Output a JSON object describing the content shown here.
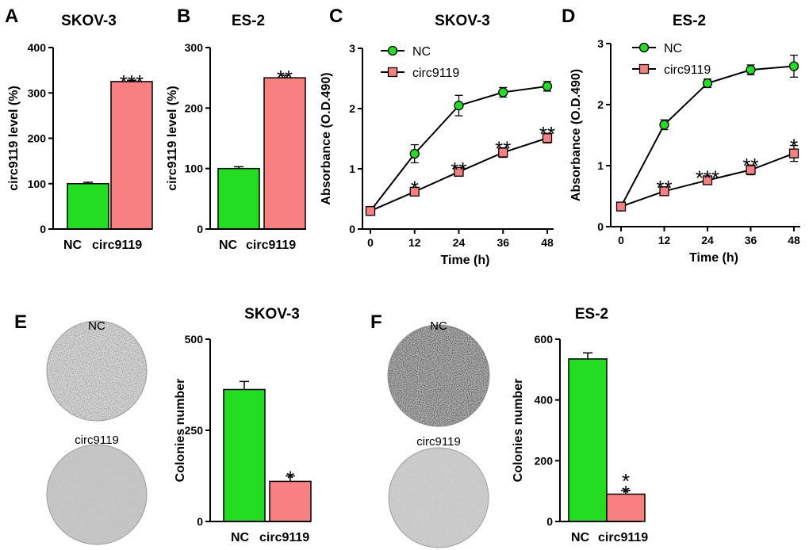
{
  "colors": {
    "nc": "#22dd22",
    "circ": "#f88080",
    "axis": "#000000",
    "dish": "#c2c2c2"
  },
  "panel_labels": [
    "A",
    "B",
    "C",
    "D",
    "E",
    "F"
  ],
  "dish_labels": {
    "E": {
      "top": "NC",
      "bottom": "circ9119"
    },
    "F": {
      "top": "NC",
      "bottom": "circ9119"
    }
  },
  "chart_data": [
    {
      "id": "A",
      "type": "bar",
      "title": "SKOV-3",
      "xlabel": "",
      "ylabel": "circ9119 level (%)",
      "categories": [
        "NC",
        "circ9119"
      ],
      "values": [
        100,
        325
      ],
      "errors": [
        3,
        3
      ],
      "significance": [
        "",
        "***"
      ],
      "ylim": [
        0,
        400
      ],
      "yticks": [
        "0",
        "100",
        "200",
        "300",
        "400"
      ]
    },
    {
      "id": "B",
      "type": "bar",
      "title": "ES-2",
      "xlabel": "",
      "ylabel": "circ9119 level (%)",
      "categories": [
        "NC",
        "circ9119"
      ],
      "values": [
        100,
        250
      ],
      "errors": [
        3,
        4
      ],
      "significance": [
        "",
        "**"
      ],
      "ylim": [
        0,
        300
      ],
      "yticks": [
        "0",
        "100",
        "200",
        "300"
      ]
    },
    {
      "id": "C",
      "type": "line",
      "title": "SKOV-3",
      "xlabel": "Time (h)",
      "ylabel": "Absorbance (O.D.490)",
      "x": [
        0,
        12,
        24,
        36,
        48
      ],
      "xticks": [
        "0",
        "12",
        "24",
        "36",
        "48"
      ],
      "ylim": [
        0,
        3
      ],
      "yticks": [
        "0",
        "1",
        "2",
        "3"
      ],
      "series": [
        {
          "name": "NC",
          "values": [
            0.3,
            1.25,
            2.05,
            2.27,
            2.37
          ],
          "errors": [
            0.03,
            0.15,
            0.17,
            0.08,
            0.08
          ]
        },
        {
          "name": "circ9119",
          "values": [
            0.3,
            0.62,
            0.95,
            1.27,
            1.51
          ],
          "errors": [
            0.03,
            0.07,
            0.05,
            0.08,
            0.08
          ]
        }
      ],
      "significance": [
        "",
        "*",
        "**",
        "**",
        "**"
      ],
      "legend": "top-left"
    },
    {
      "id": "D",
      "type": "line",
      "title": "ES-2",
      "xlabel": "Time (h)",
      "ylabel": "Absorbance (O.D.490)",
      "x": [
        0,
        12,
        24,
        36,
        48
      ],
      "xticks": [
        "0",
        "12",
        "24",
        "36",
        "48"
      ],
      "ylim": [
        0,
        3
      ],
      "yticks": [
        "0",
        "1",
        "2",
        "3"
      ],
      "series": [
        {
          "name": "NC",
          "values": [
            0.33,
            1.67,
            2.35,
            2.57,
            2.63
          ],
          "errors": [
            0.03,
            0.08,
            0.07,
            0.08,
            0.18
          ]
        },
        {
          "name": "circ9119",
          "values": [
            0.33,
            0.58,
            0.76,
            0.93,
            1.2
          ],
          "errors": [
            0.03,
            0.07,
            0.05,
            0.08,
            0.13
          ]
        }
      ],
      "significance": [
        "",
        "**",
        "***",
        "**",
        "*"
      ],
      "legend": "top-left"
    },
    {
      "id": "E",
      "type": "bar",
      "title": "SKOV-3",
      "xlabel": "",
      "ylabel": "Colonies number",
      "categories": [
        "NC",
        "circ9119"
      ],
      "values": [
        362,
        110
      ],
      "errors": [
        22,
        15
      ],
      "significance": [
        "",
        "*"
      ],
      "ylim": [
        0,
        500
      ],
      "yticks": [
        "0",
        "250",
        "500"
      ]
    },
    {
      "id": "F",
      "type": "bar",
      "title": "ES-2",
      "xlabel": "",
      "ylabel": "Colonies number",
      "categories": [
        "NC",
        "circ9119"
      ],
      "values": [
        535,
        90
      ],
      "errors": [
        20,
        12
      ],
      "significance": [
        "",
        "**"
      ],
      "ylim": [
        0,
        600
      ],
      "yticks": [
        "0",
        "200",
        "400",
        "600"
      ]
    }
  ]
}
